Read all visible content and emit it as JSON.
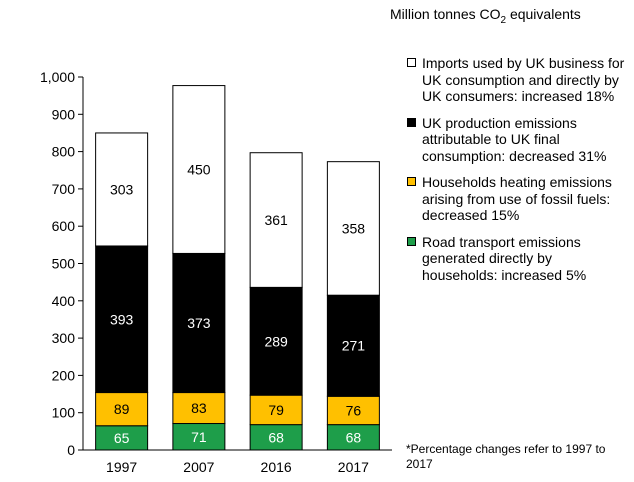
{
  "units": {
    "prefix": "Million tonnes CO",
    "subscript": "2",
    "suffix": " equivalents"
  },
  "footnote": "*Percentage changes refer to 1997 to 2017",
  "chart_data": {
    "type": "bar",
    "stacked": true,
    "categories": [
      "1997",
      "2007",
      "2016",
      "2017"
    ],
    "series": [
      {
        "name": "Road transport emissions generated directly by households: increased 5%",
        "values": [
          65,
          71,
          68,
          68
        ],
        "color": "#1e9e4a",
        "label_color": "#ffffff"
      },
      {
        "name": "Households heating emissions arising from use of fossil fuels: decreased 15%",
        "values": [
          89,
          83,
          79,
          76
        ],
        "color": "#ffc000",
        "label_color": "#000000"
      },
      {
        "name": "UK production emissions attributable to UK final consumption: decreased 31%",
        "values": [
          393,
          373,
          289,
          271
        ],
        "color": "#000000",
        "label_color": "#ffffff"
      },
      {
        "name": "Imports used by UK business for UK consumption and directly by UK consumers: increased 18%",
        "values": [
          303,
          450,
          361,
          358
        ],
        "color": "#ffffff",
        "label_color": "#000000"
      }
    ],
    "ylim": [
      0,
      1000
    ],
    "yticks": [
      0,
      100,
      200,
      300,
      400,
      500,
      600,
      700,
      800,
      900,
      1000
    ],
    "ytick_labels": [
      "0",
      "100",
      "200",
      "300",
      "400",
      "500",
      "600",
      "700",
      "800",
      "900",
      "1,000"
    ],
    "legend_order": [
      3,
      2,
      1,
      0
    ],
    "legend_position": "right",
    "grid": false
  }
}
